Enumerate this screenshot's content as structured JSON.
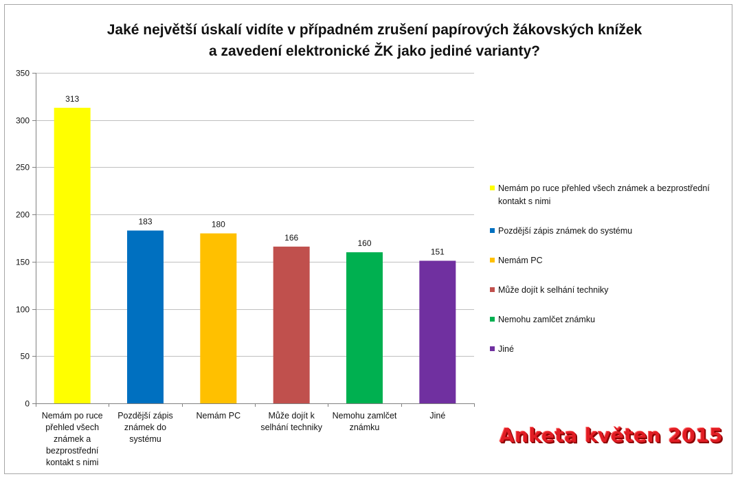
{
  "chart_data": {
    "type": "bar",
    "title_lines": [
      "Jaké největší úskalí vidíte v případném zrušení papírových žákovských knížek",
      "a zavedení elektronické ŽK jako jediné varianty?"
    ],
    "categories": [
      "Nemám po ruce přehled všech známek a bezprostřední kontakt s nimi",
      "Pozdější zápis známek do systému",
      "Nemám PC",
      "Může dojít k selhání techniky",
      "Nemohu zamlčet známku",
      "Jiné"
    ],
    "values": [
      313,
      183,
      180,
      166,
      160,
      151
    ],
    "colors": [
      "#ffff00",
      "#0070c0",
      "#ffc000",
      "#c0504d",
      "#00b050",
      "#7030a0"
    ],
    "data_labels": [
      "313",
      "183",
      "180",
      "166",
      "160",
      "151"
    ],
    "ylim": [
      0,
      350
    ],
    "yticks": [
      "0",
      "50",
      "100",
      "150",
      "200",
      "250",
      "300",
      "350"
    ],
    "grid": true,
    "legend": {
      "placement": "right",
      "entries": [
        "Nemám po ruce přehled všech známek a bezprostřední kontakt s nimi",
        "Pozdější zápis známek do systému",
        "Nemám PC",
        "Může dojít k selhání techniky",
        "Nemohu zamlčet známku",
        "Jiné"
      ]
    }
  },
  "watermark": "Anketa květen 2015"
}
